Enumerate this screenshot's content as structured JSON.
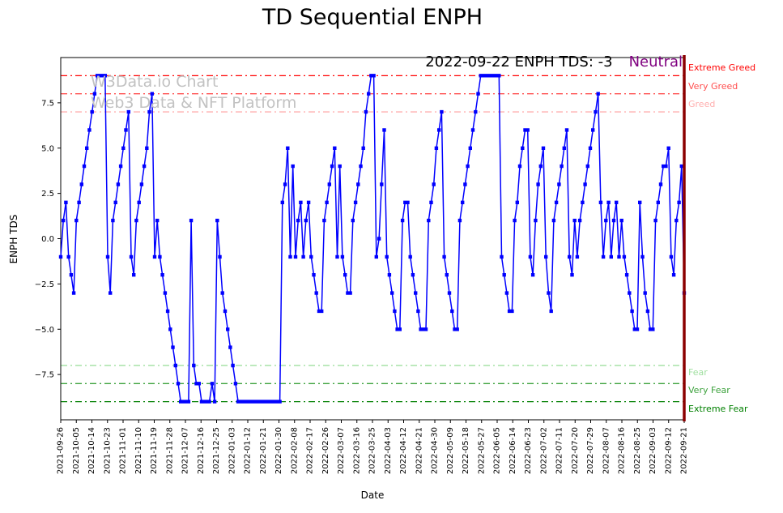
{
  "title": "TD Sequential ENPH",
  "watermark": {
    "line1": "W3Data.io Chart",
    "line2": "Web3 Data & NFT Platform"
  },
  "annotation": {
    "text": "2022-09-22 ENPH TDS: -3",
    "sentiment": "Neutral",
    "sentiment_color": "#800080"
  },
  "chart_data": {
    "type": "line",
    "title": "TD Sequential ENPH",
    "xlabel": "Date",
    "ylabel": "ENPH TDS",
    "ylim": [
      -10,
      10
    ],
    "grid": false,
    "line_color": "#0000ff",
    "marker": "square",
    "current_date_line_color": "#8b0000",
    "yticks": [
      -7.5,
      -5.0,
      -2.5,
      0.0,
      2.5,
      5.0,
      7.5
    ],
    "ytick_labels": [
      "−7.5",
      "−5.0",
      "−2.5",
      "0.0",
      "2.5",
      "5.0",
      "7.5"
    ],
    "x_tick_labels": [
      "2021-09-26",
      "2021-10-05",
      "2021-10-14",
      "2021-10-23",
      "2021-11-01",
      "2021-11-10",
      "2021-11-19",
      "2021-11-28",
      "2021-12-07",
      "2021-12-16",
      "2021-12-25",
      "2022-01-03",
      "2022-01-12",
      "2022-01-21",
      "2022-01-30",
      "2022-02-08",
      "2022-02-17",
      "2022-02-26",
      "2022-03-07",
      "2022-03-16",
      "2022-03-25",
      "2022-04-03",
      "2022-04-12",
      "2022-04-21",
      "2022-04-30",
      "2022-05-09",
      "2022-05-18",
      "2022-05-27",
      "2022-06-05",
      "2022-06-14",
      "2022-06-23",
      "2022-07-02",
      "2022-07-11",
      "2022-07-20",
      "2022-07-29",
      "2022-08-07",
      "2022-08-16",
      "2022-08-25",
      "2022-09-03",
      "2022-09-12",
      "2022-09-21"
    ],
    "thresholds": [
      {
        "value": 9,
        "label": "Extreme Greed",
        "color": "#ff0000"
      },
      {
        "value": 8,
        "label": "Very Greed",
        "color": "#ff5050"
      },
      {
        "value": 7,
        "label": "Greed",
        "color": "#ffafaf"
      },
      {
        "value": -7,
        "label": "Fear",
        "color": "#9fdf9f"
      },
      {
        "value": -8,
        "label": "Very Fear",
        "color": "#3da23d"
      },
      {
        "value": -9,
        "label": "Extreme Fear",
        "color": "#008000"
      }
    ],
    "series": [
      {
        "name": "ENPH TDS",
        "values": [
          -1,
          1,
          2,
          -1,
          -2,
          -3,
          1,
          2,
          3,
          4,
          5,
          6,
          7,
          8,
          9,
          9,
          9,
          9,
          -1,
          -3,
          1,
          2,
          3,
          4,
          5,
          6,
          7,
          -1,
          -2,
          1,
          2,
          3,
          4,
          5,
          7,
          8,
          -1,
          1,
          -1,
          -2,
          -3,
          -4,
          -5,
          -6,
          -7,
          -8,
          -9,
          -9,
          -9,
          -9,
          1,
          -7,
          -8,
          -8,
          -9,
          -9,
          -9,
          -9,
          -8,
          -9,
          1,
          -1,
          -3,
          -4,
          -5,
          -6,
          -7,
          -8,
          -9,
          -9,
          -9,
          -9,
          -9,
          -9,
          -9,
          -9,
          -9,
          -9,
          -9,
          -9,
          -9,
          -9,
          -9,
          -9,
          -9,
          2,
          3,
          5,
          -1,
          4,
          -1,
          1,
          2,
          -1,
          1,
          2,
          -1,
          -2,
          -3,
          -4,
          -4,
          1,
          2,
          3,
          4,
          5,
          -1,
          4,
          -1,
          -2,
          -3,
          -3,
          1,
          2,
          3,
          4,
          5,
          7,
          8,
          9,
          9,
          -1,
          0,
          3,
          6,
          -1,
          -2,
          -3,
          -4,
          -5,
          -5,
          1,
          2,
          2,
          -1,
          -2,
          -3,
          -4,
          -5,
          -5,
          -5,
          1,
          2,
          3,
          5,
          6,
          7,
          -1,
          -2,
          -3,
          -4,
          -5,
          -5,
          1,
          2,
          3,
          4,
          5,
          6,
          7,
          8,
          9,
          9,
          9,
          9,
          9,
          9,
          9,
          9,
          -1,
          -2,
          -3,
          -4,
          -4,
          1,
          2,
          4,
          5,
          6,
          6,
          -1,
          -2,
          1,
          3,
          4,
          5,
          -1,
          -3,
          -4,
          1,
          2,
          3,
          4,
          5,
          6,
          -1,
          -2,
          1,
          -1,
          1,
          2,
          3,
          4,
          5,
          6,
          7,
          8,
          2,
          -1,
          1,
          2,
          -1,
          1,
          2,
          -1,
          1,
          -1,
          -2,
          -3,
          -4,
          -5,
          -5,
          2,
          -1,
          -3,
          -4,
          -5,
          -5,
          1,
          2,
          3,
          4,
          4,
          5,
          -1,
          -2,
          1,
          2,
          4,
          -3
        ]
      }
    ]
  }
}
